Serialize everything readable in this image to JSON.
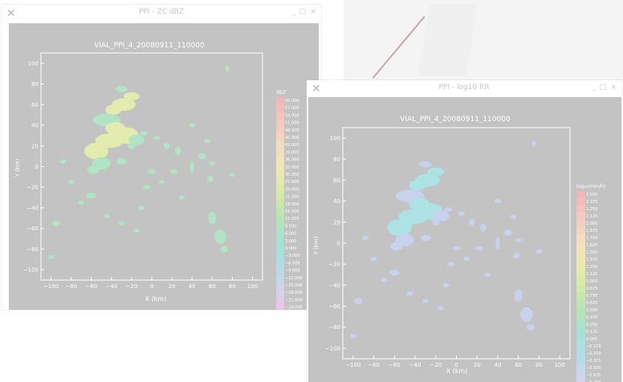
{
  "windows": [
    {
      "title": "PPI - ZC dBZ",
      "plot_title": "VIAL_PPI_4_20080911_110000",
      "xlabel": "X (km)",
      "ylabel": "Y (km)",
      "colorbar_title": "dBZ",
      "xticks": [
        "−100",
        "−80",
        "−60",
        "−40",
        "−20",
        "0",
        "20",
        "40",
        "60",
        "80",
        "100"
      ],
      "yticks": [
        "100",
        "80",
        "60",
        "40",
        "20",
        "0",
        "−20",
        "−40",
        "−60",
        "−80",
        "−100"
      ],
      "colorbar_labels": [
        "60.000",
        "57.000",
        "54.000",
        "51.000",
        "48.000",
        "45.000",
        "42.000",
        "39.000",
        "36.000",
        "33.000",
        "30.000",
        "27.000",
        "24.000",
        "21.000",
        "18.000",
        "15.000",
        "12.000",
        "9.000",
        "6.000",
        "3.000",
        "0.000",
        "−3.000",
        "−6.000",
        "−9.000",
        "−12.000",
        "−15.000",
        "−18.000",
        "−21.000",
        "−24.000"
      ],
      "colorbar_colors": [
        "#f2b8b8",
        "#f3bcbb",
        "#f4c3bd",
        "#f4c9bf",
        "#f4cfc0",
        "#f4d6c0",
        "#f4dcbf",
        "#f3e1bd",
        "#f1e5b9",
        "#eee8b5",
        "#eae9af",
        "#e3eaaa",
        "#dbeaa8",
        "#d2e9a8",
        "#c8e8ab",
        "#bfe6b0",
        "#b6e4b7",
        "#b0e3c0",
        "#abe2c9",
        "#a8e1d1",
        "#a8e0d9",
        "#abdfe0",
        "#b0dde5",
        "#b8dbe9",
        "#c2d9eb",
        "#ccd5ec",
        "#d7d1ec",
        "#e2cbea",
        "#ecc5e7"
      ],
      "echo_color": "#b0e4c4",
      "core_color": "#e3ebae"
    },
    {
      "title": "PPI - log10 RR",
      "plot_title": "VIAL_PPI_4_20080911_110000",
      "xlabel": "X (km)",
      "ylabel": "Y (km)",
      "colorbar_title": "log₁₀(mm/h)",
      "xticks": [
        "−100",
        "−80",
        "−60",
        "−40",
        "−20",
        "0",
        "20",
        "40",
        "60",
        "80",
        "100"
      ],
      "yticks": [
        "100",
        "80",
        "60",
        "40",
        "20",
        "0",
        "−20",
        "−40",
        "−60",
        "−80",
        "−100"
      ],
      "colorbar_labels": [
        "2.500",
        "2.375",
        "2.250",
        "2.125",
        "2.000",
        "1.875",
        "1.750",
        "1.625",
        "1.500",
        "1.375",
        "1.250",
        "1.125",
        "1.000",
        "0.875",
        "0.750",
        "0.625",
        "0.500",
        "0.375",
        "0.250",
        "0.125",
        "0.000",
        "−0.125",
        "−0.250",
        "−0.375",
        "−0.500",
        "−0.625",
        "−0.750",
        "−0.875",
        "−1.000"
      ],
      "colorbar_colors": [
        "#f2b8b8",
        "#f3bcbb",
        "#f4c3bd",
        "#f4c9bf",
        "#f4cfc0",
        "#f4d6c0",
        "#f4dcbf",
        "#f3e1bd",
        "#f1e5b9",
        "#eee8b5",
        "#eae9af",
        "#e3eaaa",
        "#dbeaa8",
        "#d2e9a8",
        "#c8e8ab",
        "#bfe6b0",
        "#b6e4b7",
        "#b0e3c0",
        "#abe2c9",
        "#a8e1d1",
        "#a8e0d9",
        "#abdfe0",
        "#b0dde5",
        "#b8dbe9",
        "#c2d9eb",
        "#ccd5ec",
        "#d7d1ec",
        "#e2cbea",
        "#ecc5e7"
      ],
      "echo_color": "#c8d2ee",
      "core_color": "#ade3e4"
    }
  ],
  "window_controls": {
    "close_glyph": "×",
    "minimize_glyph": "_",
    "maximize_glyph": "□",
    "app_icon": "x-logo-icon"
  }
}
